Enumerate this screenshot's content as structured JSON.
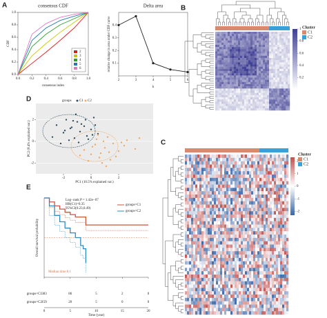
{
  "chart_data": [
    {
      "type": "line",
      "panel_label": "A",
      "title": "consensus CDF",
      "x_label": "consensus index",
      "y_label": "CDF",
      "x": [
        0,
        0.2,
        0.4,
        0.6,
        0.8,
        1
      ],
      "series": [
        {
          "name": "2",
          "color": "#e41a1c",
          "values": [
            0,
            0.18,
            0.36,
            0.55,
            0.75,
            1
          ]
        },
        {
          "name": "3",
          "color": "#c8c800",
          "values": [
            0,
            0.3,
            0.5,
            0.68,
            0.84,
            1
          ]
        },
        {
          "name": "4",
          "color": "#2ca02c",
          "values": [
            0,
            0.45,
            0.65,
            0.8,
            0.9,
            1
          ]
        },
        {
          "name": "5",
          "color": "#1f78b4",
          "values": [
            0,
            0.55,
            0.75,
            0.87,
            0.94,
            1
          ]
        },
        {
          "name": "6",
          "color": "#e377c2",
          "values": [
            0,
            0.65,
            0.82,
            0.92,
            0.97,
            1
          ]
        }
      ],
      "xlim": [
        0,
        1
      ],
      "ylim": [
        0,
        1
      ],
      "xticks": [
        {
          "value": 0,
          "label": "0.0"
        },
        {
          "value": 0.2,
          "label": "0.2"
        },
        {
          "value": 0.4,
          "label": "0.4"
        },
        {
          "value": 0.6,
          "label": "0.6"
        },
        {
          "value": 0.8,
          "label": "0.8"
        },
        {
          "value": 1,
          "label": "1.0"
        }
      ],
      "yticks": [
        {
          "value": 0,
          "label": "0.0"
        },
        {
          "value": 0.2,
          "label": "0.2"
        },
        {
          "value": 0.4,
          "label": "0.4"
        },
        {
          "value": 0.6,
          "label": "0.6"
        },
        {
          "value": 0.8,
          "label": "0.8"
        },
        {
          "value": 1,
          "label": "1.0"
        }
      ]
    },
    {
      "type": "line",
      "title": "Delta area",
      "x_label": "k",
      "y_label": "relative change in area under CDF curve",
      "x": [
        2,
        3,
        4,
        5,
        6
      ],
      "values": [
        0.4,
        0.47,
        0.1,
        0.05,
        0.03
      ],
      "color": "#222",
      "xlim": [
        2,
        6
      ],
      "ylim": [
        0,
        0.5
      ],
      "xticks": [
        2,
        3,
        4,
        5,
        6
      ],
      "yticks": [
        0.1,
        0.2,
        0.3,
        0.4
      ]
    },
    {
      "type": "heatmap",
      "panel_label": "B",
      "legend_title": "Cluster",
      "groups": [
        {
          "name": "C1",
          "color": "#d98a6e"
        },
        {
          "name": "C2",
          "color": "#3aa0d8"
        }
      ],
      "colors": [
        "#ffffff",
        "#3f3f94"
      ],
      "colorbar_lim": [
        0,
        1
      ],
      "colorbar_ticks": [
        0.2,
        0.4,
        0.6,
        0.8,
        1
      ]
    },
    {
      "type": "scatter",
      "panel_label": "D",
      "legend_title": "groups",
      "x_label": "PC1 (10.5% explained var.)",
      "y_label": "PC2 (8.4% explained var.)",
      "series": [
        {
          "name": "C1",
          "color": "#2e4e5e",
          "x": [
            -2.5,
            -2,
            -1.8,
            -1.5,
            -1.2,
            -1,
            -0.8,
            -0.5,
            -0.3,
            0,
            0.2,
            0.5,
            -2.2,
            -1.6,
            -1.1,
            -0.7,
            -0.2,
            0.3,
            -1.9,
            -1.3,
            -0.9,
            -0.4,
            0.1,
            -2.8,
            -1.4
          ],
          "values": [
            1.5,
            0.8,
            2.0,
            1.2,
            0.3,
            1.8,
            0.9,
            1.4,
            0.5,
            1.1,
            2.2,
            0.7,
            -0.2,
            0.1,
            2.5,
            1.6,
            0.2,
            1.5,
            1.0,
            1.9,
            -0.1,
            2.0,
            0.6,
            0.4,
            1.3
          ]
        },
        {
          "name": "C2",
          "color": "#f0a860",
          "x": [
            -0.5,
            0,
            0.3,
            0.6,
            1,
            1.3,
            1.6,
            2,
            2.4,
            -0.2,
            0.4,
            0.8,
            1.2,
            1.8,
            2.6,
            3.2,
            0.1,
            0.7,
            1.4,
            -0.8,
            0.9,
            2.2,
            1.1,
            0.5,
            3.5
          ],
          "values": [
            -0.8,
            -1.2,
            -0.3,
            -1.5,
            -0.6,
            -1.0,
            -0.2,
            -0.9,
            -0.4,
            -1.8,
            0.2,
            -2.0,
            0.4,
            -1.4,
            0.1,
            -0.7,
            -0.5,
            -1.1,
            -1.7,
            -1.3,
            0.0,
            -0.1,
            -2.3,
            0.6,
            0.3
          ]
        }
      ],
      "xlim": [
        -4,
        4.5
      ],
      "ylim": [
        -3,
        3.5
      ],
      "xticks": [
        -2,
        0,
        2
      ],
      "yticks": [
        -2,
        0,
        2
      ]
    },
    {
      "type": "heatmap",
      "panel_label": "C",
      "legend_title": "Cluster",
      "groups": [
        {
          "name": "C1",
          "color": "#d98a6e"
        },
        {
          "name": "C2",
          "color": "#3aa0d8"
        }
      ],
      "colors": [
        "#3a66a8",
        "#ffffff",
        "#c0504d"
      ],
      "colorbar_lim": [
        -2.3,
        2.3
      ],
      "colorbar_ticks": [
        2,
        1,
        0,
        -1,
        -2
      ]
    },
    {
      "type": "survival",
      "panel_label": "E",
      "x_label": "Time (year)",
      "y_label": "Overall survival probability",
      "annotations": [
        "Log−rank P = 1.42e−07",
        "HR(C1)=0.35",
        "95%CI(0.23,0.49)"
      ],
      "median_label": "Median time 8.1",
      "series": [
        {
          "name": "groups=C1",
          "color": "#c8553d",
          "x": [
            0,
            1,
            2,
            3,
            4,
            5,
            6,
            8,
            20
          ],
          "values": [
            1,
            0.95,
            0.9,
            0.86,
            0.82,
            0.79,
            0.76,
            0.66,
            0.66
          ]
        },
        {
          "name": "groups=C2",
          "color": "#2b8cc4",
          "x": [
            0,
            1,
            2,
            3,
            4,
            5,
            6,
            7,
            7.5,
            8
          ],
          "values": [
            1,
            0.9,
            0.78,
            0.7,
            0.62,
            0.56,
            0.5,
            0.4,
            0.36,
            0.18
          ]
        }
      ],
      "xlim": [
        0,
        20
      ],
      "ylim": [
        0,
        1
      ],
      "xticks": [
        0,
        5,
        10,
        15,
        20
      ],
      "risk_table": {
        "rows": [
          {
            "name": "groups=C1",
            "values": [
              383,
              86,
              5,
              2,
              0
            ]
          },
          {
            "name": "groups=C2",
            "values": [
              159,
              20,
              5,
              0,
              0
            ]
          }
        ]
      }
    }
  ]
}
